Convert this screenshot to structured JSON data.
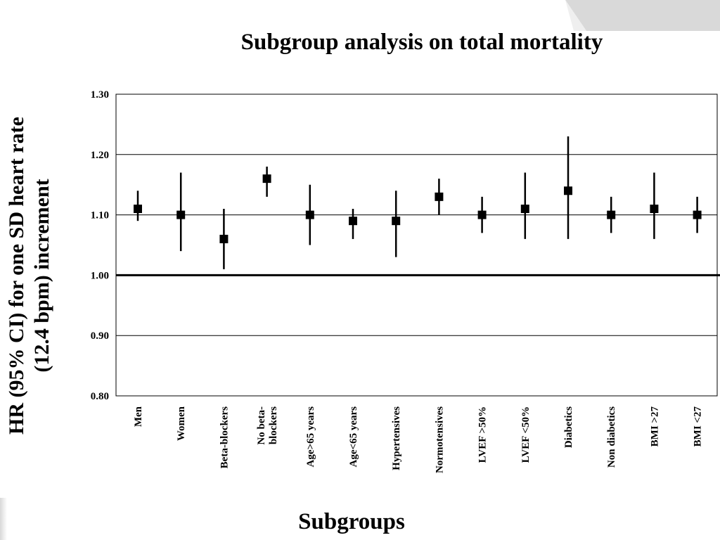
{
  "chart_data": {
    "type": "scatter",
    "title": "Subgroup analysis on total mortality",
    "xlabel": "Subgroups",
    "ylabel_lines": [
      "HR (95% CI) for one SD heart rate",
      "(12.4 bpm) increment"
    ],
    "ylim": [
      0.8,
      1.3
    ],
    "yticks": [
      "0.80",
      "0.90",
      "1.00",
      "1.10",
      "1.20",
      "1.30"
    ],
    "reference_line": 1.0,
    "grid": true,
    "categories": [
      [
        "Men"
      ],
      [
        "Women"
      ],
      [
        "Beta-blockers"
      ],
      [
        "No beta-",
        "blockers"
      ],
      [
        "Age>65 years"
      ],
      [
        "Age<65 years"
      ],
      [
        "Hypertensives"
      ],
      [
        "Normotensives"
      ],
      [
        "LVEF >50%"
      ],
      [
        "LVEF <50%"
      ],
      [
        "Diabetics"
      ],
      [
        "Non diabetics"
      ],
      [
        "BMI >27"
      ],
      [
        "BMI <27"
      ]
    ],
    "series": [
      {
        "hr": [
          1.11,
          1.1,
          1.06,
          1.16,
          1.1,
          1.09,
          1.09,
          1.13,
          1.1,
          1.11,
          1.14,
          1.1,
          1.11,
          1.1
        ],
        "lower": [
          1.09,
          1.04,
          1.01,
          1.13,
          1.05,
          1.06,
          1.03,
          1.1,
          1.07,
          1.06,
          1.06,
          1.07,
          1.06,
          1.07
        ],
        "upper": [
          1.14,
          1.17,
          1.11,
          1.18,
          1.15,
          1.11,
          1.14,
          1.16,
          1.13,
          1.17,
          1.23,
          1.13,
          1.17,
          1.13
        ]
      }
    ],
    "colors": {
      "marker": "#000000",
      "grid": "#000000",
      "background": "#ffffff"
    }
  }
}
